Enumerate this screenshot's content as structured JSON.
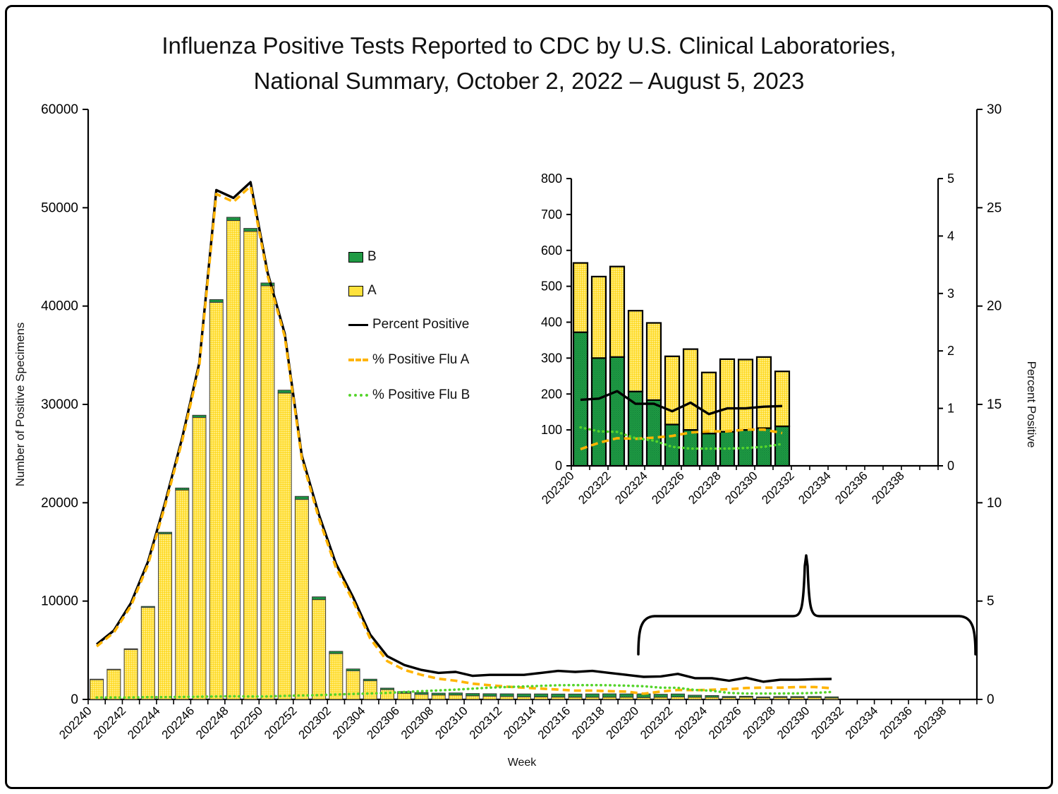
{
  "title": {
    "line1": "Influenza Positive Tests Reported to CDC by U.S. Clinical Laboratories,",
    "line2": "National Summary, October 2, 2022 – August 5, 2023"
  },
  "axes": {
    "left_title": "Number of Positive Specimens",
    "right_title": "Percent Positive",
    "x_title": "Week"
  },
  "legend": [
    {
      "label": "B"
    },
    {
      "label": "A"
    },
    {
      "label": "Percent Positive"
    },
    {
      "label": "% Positive Flu A"
    },
    {
      "label": "% Positive Flu B"
    }
  ],
  "colors": {
    "flu_a_bar": "#FFE23C",
    "flu_a_bar_speck_light": "#FFF1A3",
    "flu_a_bar_speck_dark": "#FFD41E",
    "flu_b_bar": "#1F9A44",
    "flu_b_bar_speck": "#0F7C36",
    "percent_positive_line": "#000000",
    "flu_a_line": "#FFB400",
    "flu_b_line": "#55D42B",
    "bar_stroke_main": "#3a3a3a",
    "bar_stroke_inset": "#000000"
  },
  "chart_data": [
    {
      "id": "main",
      "type": "bar",
      "subtype": "stacked-bars-with-percent-lines",
      "title": "",
      "xlabel": "Week",
      "ylabel_left": "Number of Positive Specimens",
      "ylabel_right": "Percent Positive",
      "ylim_left": [
        0,
        60000
      ],
      "ylim_right": [
        0,
        30
      ],
      "grid": false,
      "left_tick_labels": [
        "0",
        "10000",
        "20000",
        "30000",
        "40000",
        "50000",
        "60000"
      ],
      "right_tick_labels": [
        "0",
        "5",
        "10",
        "15",
        "20",
        "25",
        "30"
      ],
      "x_axis_slots": 52,
      "x_tick_labels": [
        "202240",
        "202242",
        "202244",
        "202246",
        "202248",
        "202250",
        "202252",
        "202302",
        "202304",
        "202306",
        "202308",
        "202310",
        "202312",
        "202314",
        "202316",
        "202318",
        "202320",
        "202322",
        "202324",
        "202326",
        "202328",
        "202330",
        "202332",
        "202334",
        "202336",
        "202338"
      ],
      "categories": [
        "202240",
        "202241",
        "202242",
        "202243",
        "202244",
        "202245",
        "202246",
        "202247",
        "202248",
        "202249",
        "202250",
        "202251",
        "202252",
        "202301",
        "202302",
        "202303",
        "202304",
        "202305",
        "202306",
        "202307",
        "202308",
        "202309",
        "202310",
        "202311",
        "202312",
        "202313",
        "202314",
        "202315",
        "202316",
        "202317",
        "202318",
        "202319",
        "202320",
        "202321",
        "202322",
        "202323",
        "202324",
        "202325",
        "202326",
        "202327",
        "202328",
        "202329",
        "202330",
        "202331"
      ],
      "series": [
        {
          "name": "A",
          "type": "bar",
          "stack": "bottom",
          "values": [
            2020,
            3020,
            5080,
            9360,
            16850,
            21300,
            28670,
            40380,
            48700,
            47600,
            42070,
            31150,
            20340,
            10150,
            4660,
            2910,
            1900,
            1000,
            630,
            520,
            450,
            450,
            370,
            330,
            300,
            270,
            260,
            240,
            230,
            230,
            230,
            230,
            193,
            227,
            252,
            225,
            215,
            190,
            225,
            170,
            202,
            196,
            198,
            153
          ]
        },
        {
          "name": "B",
          "type": "bar",
          "stack": "top",
          "values": [
            40,
            50,
            70,
            100,
            150,
            200,
            230,
            280,
            330,
            300,
            280,
            300,
            310,
            280,
            230,
            190,
            160,
            150,
            170,
            180,
            190,
            210,
            230,
            250,
            270,
            290,
            300,
            310,
            320,
            330,
            340,
            330,
            372,
            300,
            303,
            207,
            183,
            115,
            100,
            90,
            95,
            100,
            105,
            110
          ]
        },
        {
          "name": "Percent Positive",
          "type": "line",
          "style": "solid",
          "axis": "right",
          "values": [
            2.8,
            3.5,
            4.9,
            7.0,
            10.0,
            13.3,
            17.1,
            25.9,
            25.5,
            26.3,
            21.7,
            18.6,
            12.4,
            9.4,
            6.9,
            5.2,
            3.3,
            2.2,
            1.75,
            1.5,
            1.35,
            1.4,
            1.2,
            1.25,
            1.25,
            1.25,
            1.35,
            1.45,
            1.4,
            1.45,
            1.35,
            1.25,
            1.15,
            1.17,
            1.3,
            1.08,
            1.08,
            0.95,
            1.1,
            0.9,
            1.0,
            1.0,
            1.03,
            1.04
          ]
        },
        {
          "name": "% Positive Flu A",
          "type": "line",
          "style": "dashed",
          "axis": "right",
          "values": [
            2.7,
            3.4,
            4.75,
            6.85,
            9.85,
            13.15,
            16.95,
            25.7,
            25.3,
            26.1,
            21.55,
            18.45,
            12.25,
            9.2,
            6.7,
            5.0,
            3.1,
            1.95,
            1.5,
            1.25,
            1.05,
            0.95,
            0.8,
            0.72,
            0.65,
            0.6,
            0.55,
            0.5,
            0.45,
            0.45,
            0.42,
            0.4,
            0.29,
            0.4,
            0.48,
            0.47,
            0.49,
            0.52,
            0.58,
            0.6,
            0.6,
            0.63,
            0.63,
            0.57
          ]
        },
        {
          "name": "% Positive Flu B",
          "type": "line",
          "style": "dotted",
          "axis": "right",
          "values": [
            0.1,
            0.1,
            0.1,
            0.12,
            0.12,
            0.13,
            0.14,
            0.15,
            0.16,
            0.15,
            0.15,
            0.18,
            0.2,
            0.22,
            0.25,
            0.28,
            0.3,
            0.33,
            0.38,
            0.42,
            0.46,
            0.5,
            0.55,
            0.6,
            0.63,
            0.66,
            0.69,
            0.72,
            0.73,
            0.73,
            0.72,
            0.7,
            0.67,
            0.6,
            0.59,
            0.48,
            0.44,
            0.33,
            0.3,
            0.3,
            0.3,
            0.31,
            0.33,
            0.38
          ]
        }
      ]
    },
    {
      "id": "inset",
      "type": "bar",
      "subtype": "stacked-bars-with-percent-lines-zoom",
      "title": "",
      "ylim_left": [
        0,
        800
      ],
      "ylim_right": [
        0,
        5
      ],
      "grid": false,
      "left_tick_labels": [
        "0",
        "100",
        "200",
        "300",
        "400",
        "500",
        "600",
        "700",
        "800"
      ],
      "right_tick_labels": [
        "0",
        "1",
        "2",
        "3",
        "4",
        "5"
      ],
      "x_axis_slots": 20,
      "x_tick_labels": [
        "202320",
        "202322",
        "202324",
        "202326",
        "202328",
        "202330",
        "202332",
        "202334",
        "202336",
        "202338"
      ],
      "categories": [
        "202320",
        "202321",
        "202322",
        "202323",
        "202324",
        "202325",
        "202326",
        "202327",
        "202328",
        "202329",
        "202330",
        "202331"
      ],
      "series": [
        {
          "name": "B",
          "type": "bar",
          "stack": "bottom",
          "values": [
            372,
            300,
            303,
            207,
            183,
            115,
            100,
            90,
            95,
            100,
            105,
            110
          ]
        },
        {
          "name": "A",
          "type": "bar",
          "stack": "top",
          "values": [
            193,
            227,
            252,
            225,
            215,
            190,
            225,
            170,
            202,
            196,
            198,
            153
          ]
        },
        {
          "name": "Percent Positive",
          "type": "line",
          "style": "solid",
          "axis": "right",
          "values": [
            1.15,
            1.17,
            1.3,
            1.08,
            1.08,
            0.95,
            1.1,
            0.9,
            1.0,
            1.0,
            1.03,
            1.04
          ]
        },
        {
          "name": "% Positive Flu A",
          "type": "line",
          "style": "dashed",
          "axis": "right",
          "values": [
            0.29,
            0.4,
            0.48,
            0.47,
            0.49,
            0.52,
            0.58,
            0.6,
            0.6,
            0.63,
            0.63,
            0.57
          ]
        },
        {
          "name": "% Positive Flu B",
          "type": "line",
          "style": "dotted",
          "axis": "right",
          "values": [
            0.67,
            0.6,
            0.59,
            0.48,
            0.44,
            0.33,
            0.3,
            0.3,
            0.3,
            0.31,
            0.33,
            0.38
          ]
        }
      ]
    }
  ]
}
